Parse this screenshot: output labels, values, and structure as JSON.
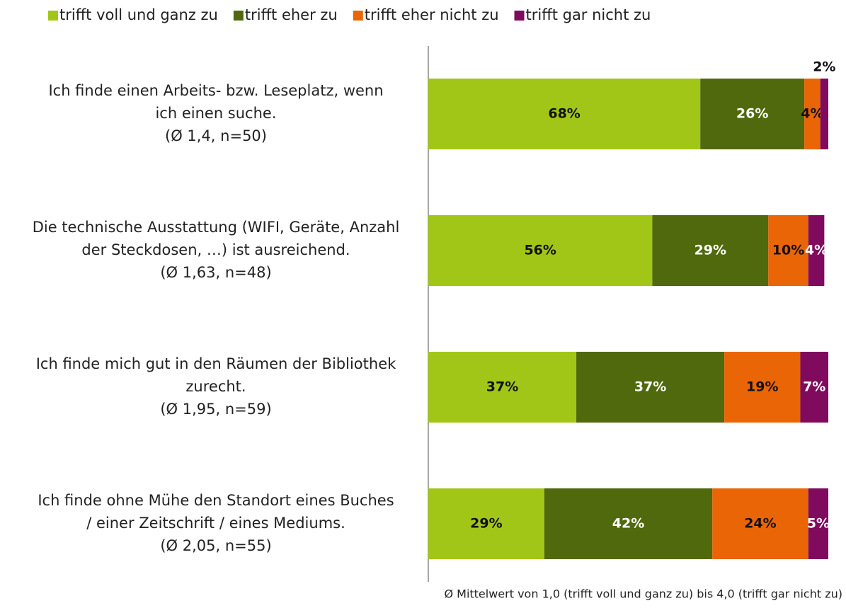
{
  "chart_data": {
    "type": "stacked-barh",
    "categories": [
      [
        "Ich finde einen Arbeits- bzw. Leseplatz, wenn",
        "ich einen suche.",
        "(Ø 1,4, n=50)"
      ],
      [
        "Die technische Ausstattung (WIFI, Geräte, Anzahl",
        "der Steckdosen, …) ist ausreichend.",
        "(Ø 1,63, n=48)"
      ],
      [
        "Ich finde mich gut in den Räumen der Bibliothek",
        "zurecht.",
        "(Ø 1,95, n=59)"
      ],
      [
        "Ich finde ohne Mühe den Standort eines Buches",
        "/ einer Zeitschrift / eines Mediums.",
        "(Ø 2,05, n=55)"
      ]
    ],
    "series": [
      {
        "name": "trifft voll und ganz zu",
        "color": "#a2c617",
        "values": [
          68,
          56,
          37,
          29
        ],
        "value_labels": [
          "68%",
          "56%",
          "37%",
          "29%"
        ]
      },
      {
        "name": "trifft eher zu",
        "color": "#4f690c",
        "values": [
          26,
          29,
          37,
          42
        ],
        "value_labels": [
          "26%",
          "29%",
          "37%",
          "42%"
        ]
      },
      {
        "name": "trifft eher nicht zu",
        "color": "#ea6506",
        "values": [
          4,
          10,
          19,
          24
        ],
        "value_labels": [
          "4%",
          "10%",
          "19%",
          "24%"
        ]
      },
      {
        "name": "trifft gar nicht zu",
        "color": "#7f0a5e",
        "values": [
          2,
          4,
          7,
          5
        ],
        "value_labels": [
          "2%",
          "4%",
          "7%",
          "5%"
        ]
      }
    ],
    "xlim": [
      0,
      100
    ],
    "legend": "top",
    "note": "Ø Mittelwert von 1,0 (trifft voll und ganz zu) bis 4,0 (trifft gar nicht zu)"
  }
}
